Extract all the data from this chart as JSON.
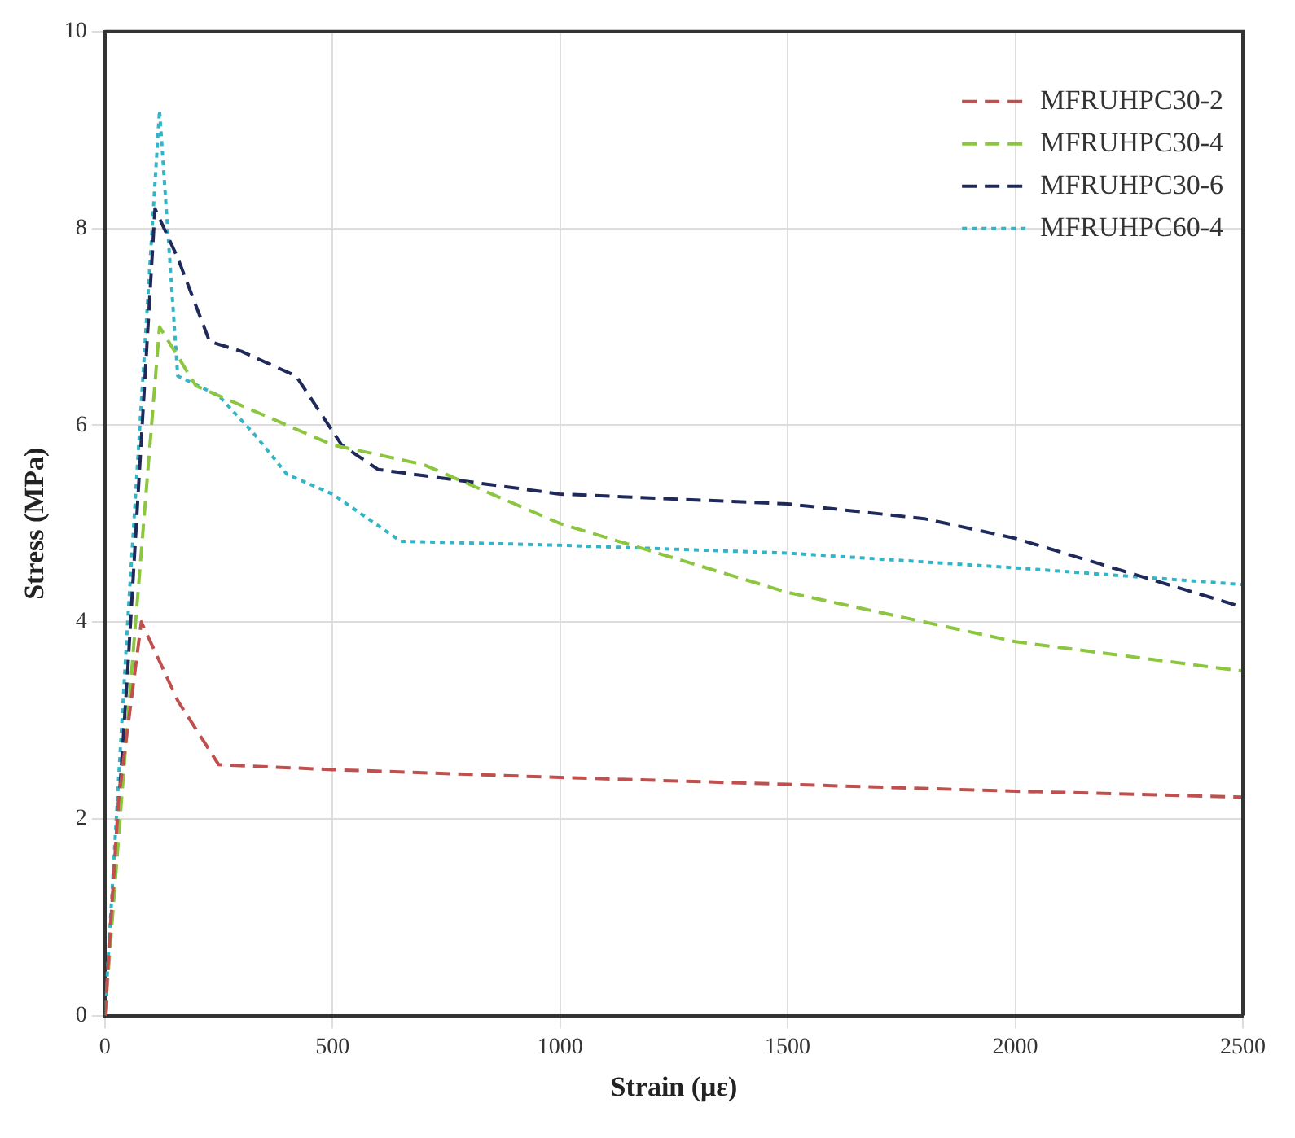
{
  "chart_data": {
    "type": "line",
    "xlabel": "Strain (με)",
    "ylabel": "Stress (MPa)",
    "xlim": [
      0,
      2500
    ],
    "xticks": [
      0,
      500,
      1000,
      1500,
      2000,
      2500
    ],
    "ylim": [
      0,
      10
    ],
    "yticks": [
      0,
      2,
      4,
      6,
      8,
      10
    ],
    "grid": true,
    "legend": "top right",
    "marker": "none",
    "series": [
      {
        "name": "MFRUHPC30-2",
        "color": "#c0504d",
        "line_style": "dashed",
        "x": [
          0,
          30,
          80,
          160,
          250,
          500,
          1000,
          1500,
          2000,
          2500
        ],
        "values": [
          0,
          2.2,
          4.0,
          3.2,
          2.55,
          2.5,
          2.42,
          2.35,
          2.28,
          2.22
        ]
      },
      {
        "name": "MFRUHPC30-4",
        "color": "#8cc63f",
        "line_style": "dashed",
        "x": [
          0,
          50,
          120,
          200,
          500,
          700,
          1000,
          1500,
          2000,
          2500
        ],
        "values": [
          0,
          3,
          7.0,
          6.4,
          5.8,
          5.6,
          5.0,
          4.3,
          3.8,
          3.5
        ]
      },
      {
        "name": "MFRUHPC30-6",
        "color": "#1f2a5a",
        "line_style": "dashed",
        "x": [
          0,
          50,
          110,
          160,
          230,
          300,
          420,
          520,
          600,
          1000,
          1500,
          1800,
          2000,
          2500
        ],
        "values": [
          0,
          3.5,
          8.2,
          7.7,
          6.85,
          6.75,
          6.5,
          5.8,
          5.55,
          5.3,
          5.2,
          5.05,
          4.85,
          4.15
        ]
      },
      {
        "name": "MFRUHPC60-4",
        "color": "#33b5c8",
        "line_style": "dotted",
        "x": [
          0,
          50,
          120,
          160,
          250,
          330,
          400,
          500,
          650,
          1000,
          1500,
          2000,
          2500
        ],
        "values": [
          0,
          4,
          9.2,
          6.5,
          6.3,
          5.9,
          5.5,
          5.3,
          4.82,
          4.78,
          4.7,
          4.55,
          4.38
        ]
      }
    ]
  }
}
